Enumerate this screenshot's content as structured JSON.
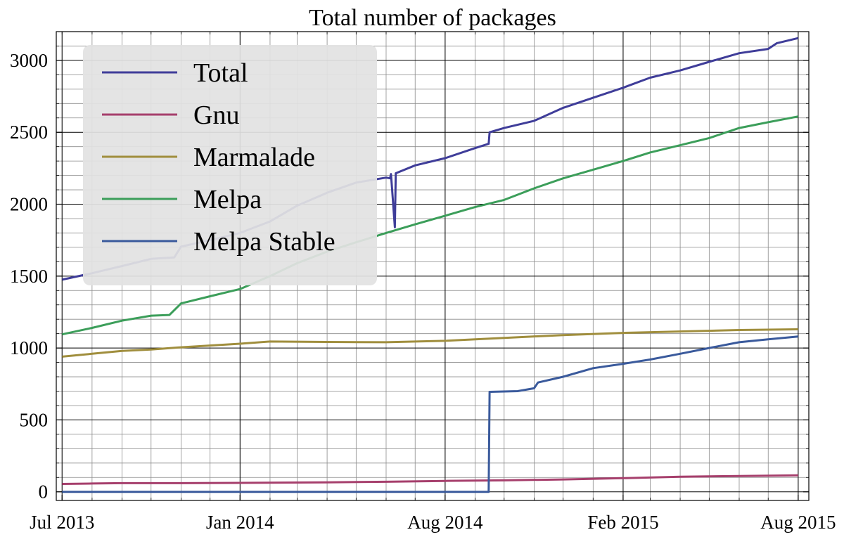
{
  "chart_data": {
    "type": "line",
    "title": "Total number of packages",
    "xlabel": "",
    "ylabel": "",
    "x_axis_type": "date",
    "xlim": [
      "2013-06-25",
      "2015-08-12"
    ],
    "ylim": [
      -60,
      3200
    ],
    "x_ticks": [
      {
        "date": "2013-07-01",
        "label": "Jul 2013"
      },
      {
        "date": "2014-01-01",
        "label": "Jan 2014"
      },
      {
        "date": "2014-08-01",
        "label": "Aug 2014"
      },
      {
        "date": "2015-02-01",
        "label": "Feb 2015"
      },
      {
        "date": "2015-08-01",
        "label": "Aug 2015"
      }
    ],
    "y_ticks": [
      {
        "value": 0,
        "label": "0"
      },
      {
        "value": 500,
        "label": "500"
      },
      {
        "value": 1000,
        "label": "1000"
      },
      {
        "value": 1500,
        "label": "1500"
      },
      {
        "value": 2000,
        "label": "2000"
      },
      {
        "value": 2500,
        "label": "2500"
      },
      {
        "value": 3000,
        "label": "3000"
      }
    ],
    "grid": true,
    "legend_position": "top-left",
    "series": [
      {
        "name": "Total",
        "color": "#3f3d99",
        "points": [
          [
            "2013-07-01",
            1475
          ],
          [
            "2013-08-01",
            1520
          ],
          [
            "2013-09-01",
            1570
          ],
          [
            "2013-10-01",
            1620
          ],
          [
            "2013-10-25",
            1630
          ],
          [
            "2013-11-01",
            1705
          ],
          [
            "2013-12-01",
            1750
          ],
          [
            "2014-01-01",
            1800
          ],
          [
            "2014-02-01",
            1880
          ],
          [
            "2014-03-01",
            1990
          ],
          [
            "2014-04-01",
            2080
          ],
          [
            "2014-05-01",
            2150
          ],
          [
            "2014-06-01",
            2185
          ],
          [
            "2014-06-05",
            2180
          ],
          [
            "2014-06-06",
            2210
          ],
          [
            "2014-06-10",
            1840
          ],
          [
            "2014-06-11",
            2215
          ],
          [
            "2014-07-01",
            2270
          ],
          [
            "2014-08-01",
            2320
          ],
          [
            "2014-09-01",
            2390
          ],
          [
            "2014-09-15",
            2420
          ],
          [
            "2014-09-16",
            2500
          ],
          [
            "2014-10-01",
            2530
          ],
          [
            "2014-11-01",
            2580
          ],
          [
            "2014-12-01",
            2670
          ],
          [
            "2015-01-01",
            2740
          ],
          [
            "2015-02-01",
            2810
          ],
          [
            "2015-03-01",
            2880
          ],
          [
            "2015-04-01",
            2930
          ],
          [
            "2015-05-01",
            2990
          ],
          [
            "2015-06-01",
            3050
          ],
          [
            "2015-07-01",
            3080
          ],
          [
            "2015-07-10",
            3120
          ],
          [
            "2015-08-01",
            3155
          ]
        ]
      },
      {
        "name": "Gnu",
        "color": "#a63f6c",
        "points": [
          [
            "2013-07-01",
            55
          ],
          [
            "2013-08-01",
            58
          ],
          [
            "2013-09-01",
            60
          ],
          [
            "2013-11-01",
            60
          ],
          [
            "2014-01-01",
            62
          ],
          [
            "2014-04-01",
            66
          ],
          [
            "2014-06-01",
            70
          ],
          [
            "2014-08-01",
            76
          ],
          [
            "2014-10-01",
            80
          ],
          [
            "2014-12-01",
            86
          ],
          [
            "2015-02-01",
            95
          ],
          [
            "2015-04-01",
            105
          ],
          [
            "2015-06-01",
            110
          ],
          [
            "2015-08-01",
            115
          ]
        ]
      },
      {
        "name": "Marmalade",
        "color": "#a08e3d",
        "points": [
          [
            "2013-07-01",
            940
          ],
          [
            "2013-08-01",
            960
          ],
          [
            "2013-09-01",
            980
          ],
          [
            "2013-10-01",
            990
          ],
          [
            "2013-11-01",
            1005
          ],
          [
            "2014-01-01",
            1030
          ],
          [
            "2014-02-01",
            1045
          ],
          [
            "2014-04-01",
            1042
          ],
          [
            "2014-06-01",
            1040
          ],
          [
            "2014-08-01",
            1050
          ],
          [
            "2014-10-01",
            1070
          ],
          [
            "2014-12-01",
            1090
          ],
          [
            "2015-02-01",
            1105
          ],
          [
            "2015-04-01",
            1115
          ],
          [
            "2015-06-01",
            1125
          ],
          [
            "2015-08-01",
            1130
          ]
        ]
      },
      {
        "name": "Melpa",
        "color": "#3c9e5a",
        "points": [
          [
            "2013-07-01",
            1095
          ],
          [
            "2013-08-01",
            1140
          ],
          [
            "2013-09-01",
            1190
          ],
          [
            "2013-10-01",
            1225
          ],
          [
            "2013-10-20",
            1230
          ],
          [
            "2013-11-01",
            1310
          ],
          [
            "2013-12-01",
            1360
          ],
          [
            "2014-01-01",
            1410
          ],
          [
            "2014-02-01",
            1500
          ],
          [
            "2014-03-01",
            1590
          ],
          [
            "2014-04-01",
            1670
          ],
          [
            "2014-05-01",
            1735
          ],
          [
            "2014-06-01",
            1800
          ],
          [
            "2014-07-01",
            1860
          ],
          [
            "2014-08-01",
            1920
          ],
          [
            "2014-09-01",
            1980
          ],
          [
            "2014-10-01",
            2030
          ],
          [
            "2014-11-01",
            2110
          ],
          [
            "2014-12-01",
            2180
          ],
          [
            "2015-01-01",
            2240
          ],
          [
            "2015-02-01",
            2300
          ],
          [
            "2015-03-01",
            2360
          ],
          [
            "2015-04-01",
            2410
          ],
          [
            "2015-05-01",
            2460
          ],
          [
            "2015-06-01",
            2530
          ],
          [
            "2015-07-01",
            2570
          ],
          [
            "2015-08-01",
            2610
          ]
        ]
      },
      {
        "name": "Melpa Stable",
        "color": "#3a5a9c",
        "points": [
          [
            "2013-07-01",
            0
          ],
          [
            "2014-09-15",
            0
          ],
          [
            "2014-09-16",
            695
          ],
          [
            "2014-10-15",
            700
          ],
          [
            "2014-11-01",
            720
          ],
          [
            "2014-11-05",
            760
          ],
          [
            "2014-12-01",
            800
          ],
          [
            "2015-01-01",
            860
          ],
          [
            "2015-02-01",
            890
          ],
          [
            "2015-03-01",
            920
          ],
          [
            "2015-04-01",
            960
          ],
          [
            "2015-05-01",
            1000
          ],
          [
            "2015-06-01",
            1040
          ],
          [
            "2015-07-01",
            1060
          ],
          [
            "2015-08-01",
            1080
          ]
        ]
      }
    ]
  }
}
